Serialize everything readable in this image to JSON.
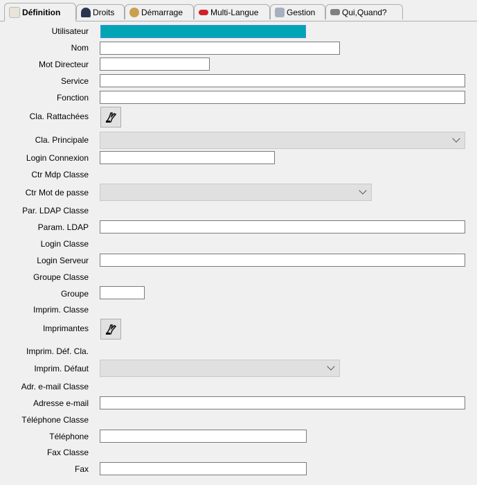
{
  "tabs": [
    {
      "label": "Définition",
      "icon": "document-icon",
      "active": true,
      "color": "#e8e4da"
    },
    {
      "label": "Droits",
      "icon": "user-icon",
      "color": "#2a3550"
    },
    {
      "label": "Démarrage",
      "icon": "cookie-icon",
      "color": "#c8a050"
    },
    {
      "label": "Multi-Langue",
      "icon": "lips-icon",
      "color": "#d0202a"
    },
    {
      "label": "Gestion",
      "icon": "printer-icon",
      "color": "#a8b0c0"
    },
    {
      "label": "Qui,Quand?",
      "icon": "projector-icon",
      "color": "#808080"
    }
  ],
  "fields": [
    {
      "label": "Utilisateur",
      "value": ""
    },
    {
      "label": "Nom",
      "value": ""
    },
    {
      "label": "Mot Directeur",
      "value": ""
    },
    {
      "label": "Service",
      "value": ""
    },
    {
      "label": "Fonction",
      "value": ""
    },
    {
      "label": "Cla. Rattachées",
      "icon": "hand-pointer-icon"
    },
    {
      "label": "Cla. Principale",
      "value": ""
    },
    {
      "label": "Login Connexion",
      "value": ""
    },
    {
      "label": "Ctr Mdp Classe"
    },
    {
      "label": "Ctr Mot de passe",
      "value": ""
    },
    {
      "label": "Par. LDAP Classe"
    },
    {
      "label": "Param. LDAP",
      "value": ""
    },
    {
      "label": "Login Classe"
    },
    {
      "label": "Login Serveur",
      "value": ""
    },
    {
      "label": "Groupe Classe"
    },
    {
      "label": "Groupe",
      "value": ""
    },
    {
      "label": "Imprim. Classe"
    },
    {
      "label": "Imprimantes",
      "icon": "hand-pointer-icon"
    },
    {
      "label": "Imprim. Déf. Cla."
    },
    {
      "label": "Imprim. Défaut",
      "value": ""
    },
    {
      "label": "Adr. e-mail Classe"
    },
    {
      "label": "Adresse e-mail",
      "value": ""
    },
    {
      "label": "Téléphone Classe"
    },
    {
      "label": "Téléphone",
      "value": ""
    },
    {
      "label": "Fax Classe"
    },
    {
      "label": "Fax",
      "value": ""
    }
  ],
  "colors": {
    "selected_input": "#00a5b5"
  }
}
